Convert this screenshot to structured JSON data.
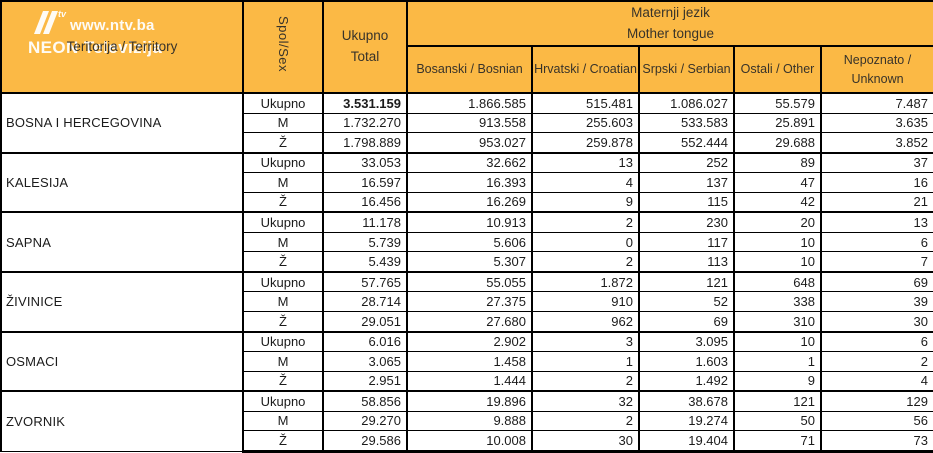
{
  "watermark": {
    "url": "www.ntv.ba",
    "brand": "NEON Televizija",
    "logo_sup": "tv"
  },
  "colors": {
    "header_bg": "#FBB945",
    "border": "#000000",
    "cell_bg": "#FFFFFF",
    "text": "#1B1B1B",
    "watermark_text": "#FFFFFF"
  },
  "header": {
    "territory": "Teritorija / Territory",
    "sex": "Spol/Sex",
    "total_line1": "Ukupno",
    "total_line2": "Total",
    "mother_tongue_line1": "Maternji jezik",
    "mother_tongue_line2": "Mother tongue",
    "languages": [
      "Bosanski / Bosnian",
      "Hrvatski / Croatian",
      "Srpski / Serbian",
      "Ostali / Other",
      "Nepoznato / Unknown"
    ]
  },
  "groups": [
    {
      "territory": "BOSNA I HERCEGOVINA",
      "rows": [
        {
          "sex": "Ukupno",
          "total": "3.531.159",
          "bold": true,
          "values": [
            "1.866.585",
            "515.481",
            "1.086.027",
            "55.579",
            "7.487"
          ]
        },
        {
          "sex": "M",
          "total": "1.732.270",
          "bold": false,
          "values": [
            "913.558",
            "255.603",
            "533.583",
            "25.891",
            "3.635"
          ]
        },
        {
          "sex": "Ž",
          "total": "1.798.889",
          "bold": false,
          "values": [
            "953.027",
            "259.878",
            "552.444",
            "29.688",
            "3.852"
          ]
        }
      ]
    },
    {
      "territory": "KALESIJA",
      "rows": [
        {
          "sex": "Ukupno",
          "total": "33.053",
          "bold": false,
          "values": [
            "32.662",
            "13",
            "252",
            "89",
            "37"
          ]
        },
        {
          "sex": "M",
          "total": "16.597",
          "bold": false,
          "values": [
            "16.393",
            "4",
            "137",
            "47",
            "16"
          ]
        },
        {
          "sex": "Ž",
          "total": "16.456",
          "bold": false,
          "values": [
            "16.269",
            "9",
            "115",
            "42",
            "21"
          ]
        }
      ]
    },
    {
      "territory": "SAPNA",
      "rows": [
        {
          "sex": "Ukupno",
          "total": "11.178",
          "bold": false,
          "values": [
            "10.913",
            "2",
            "230",
            "20",
            "13"
          ]
        },
        {
          "sex": "M",
          "total": "5.739",
          "bold": false,
          "values": [
            "5.606",
            "0",
            "117",
            "10",
            "6"
          ]
        },
        {
          "sex": "Ž",
          "total": "5.439",
          "bold": false,
          "values": [
            "5.307",
            "2",
            "113",
            "10",
            "7"
          ]
        }
      ]
    },
    {
      "territory": "ŽIVINICE",
      "rows": [
        {
          "sex": "Ukupno",
          "total": "57.765",
          "bold": false,
          "values": [
            "55.055",
            "1.872",
            "121",
            "648",
            "69"
          ]
        },
        {
          "sex": "M",
          "total": "28.714",
          "bold": false,
          "values": [
            "27.375",
            "910",
            "52",
            "338",
            "39"
          ]
        },
        {
          "sex": "Ž",
          "total": "29.051",
          "bold": false,
          "values": [
            "27.680",
            "962",
            "69",
            "310",
            "30"
          ]
        }
      ]
    },
    {
      "territory": "OSMACI",
      "rows": [
        {
          "sex": "Ukupno",
          "total": "6.016",
          "bold": false,
          "values": [
            "2.902",
            "3",
            "3.095",
            "10",
            "6"
          ]
        },
        {
          "sex": "M",
          "total": "3.065",
          "bold": false,
          "values": [
            "1.458",
            "1",
            "1.603",
            "1",
            "2"
          ]
        },
        {
          "sex": "Ž",
          "total": "2.951",
          "bold": false,
          "values": [
            "1.444",
            "2",
            "1.492",
            "9",
            "4"
          ]
        }
      ]
    },
    {
      "territory": "ZVORNIK",
      "rows": [
        {
          "sex": "Ukupno",
          "total": "58.856",
          "bold": false,
          "values": [
            "19.896",
            "32",
            "38.678",
            "121",
            "129"
          ]
        },
        {
          "sex": "M",
          "total": "29.270",
          "bold": false,
          "values": [
            "9.888",
            "2",
            "19.274",
            "50",
            "56"
          ]
        },
        {
          "sex": "Ž",
          "total": "29.586",
          "bold": false,
          "values": [
            "10.008",
            "30",
            "19.404",
            "71",
            "73"
          ]
        }
      ]
    }
  ]
}
